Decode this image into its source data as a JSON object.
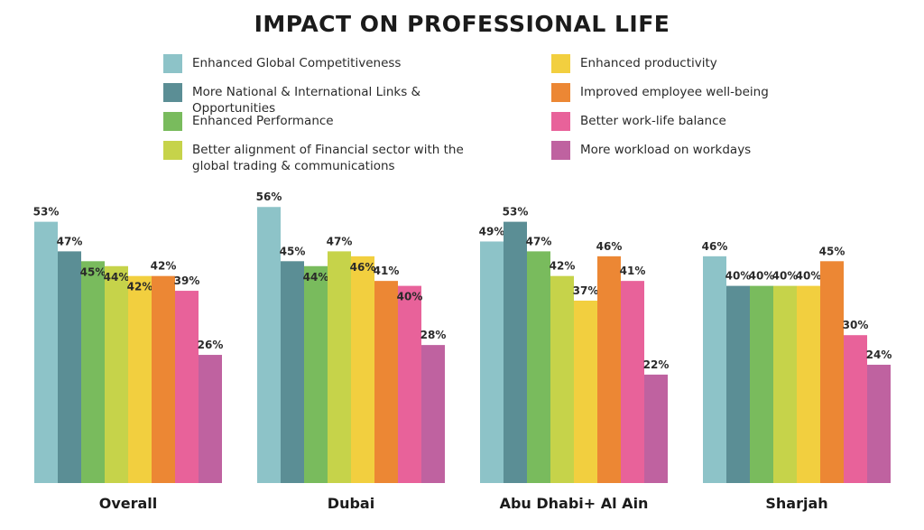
{
  "chart_data": {
    "type": "bar",
    "title": "IMPACT ON PROFESSIONAL LIFE",
    "categories": [
      "Overall",
      "Dubai",
      "Abu Dhabi+ Al Ain",
      "Sharjah"
    ],
    "ylim": [
      0,
      56
    ],
    "grid": false,
    "legend_placement": "top",
    "series": [
      {
        "name": "Enhanced Global Competitiveness",
        "color": "#8dc3c8",
        "values": [
          53,
          56,
          49,
          46
        ]
      },
      {
        "name": "More National & International Links & Opportunities",
        "color": "#5b8e95",
        "values": [
          47,
          45,
          53,
          40
        ]
      },
      {
        "name": "Enhanced Performance",
        "color": "#79bb5d",
        "values": [
          45,
          44,
          47,
          40
        ]
      },
      {
        "name": "Better alignment of Financial sector with the global trading & communications",
        "color": "#c6d34a",
        "values": [
          44,
          47,
          42,
          40
        ]
      },
      {
        "name": "Enhanced productivity",
        "color": "#f2cf3f",
        "values": [
          42,
          46,
          37,
          40
        ]
      },
      {
        "name": "Improved employee well-being",
        "color": "#ec8734",
        "values": [
          42,
          41,
          46,
          45
        ]
      },
      {
        "name": "Better work-life balance",
        "color": "#e8629a",
        "values": [
          39,
          40,
          41,
          30
        ]
      },
      {
        "name": "More workload on workdays",
        "color": "#bf62a0",
        "values": [
          26,
          28,
          22,
          24
        ]
      }
    ],
    "value_suffix": "%"
  }
}
